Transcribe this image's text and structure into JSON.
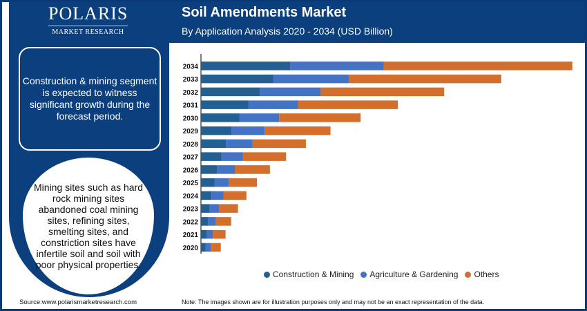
{
  "brand": {
    "name": "POLARIS",
    "sub": "MARKET RESEARCH"
  },
  "header": {
    "title": "Soil Amendments Market",
    "subtitle": "By Application Analysis 2020 - 2034 (USD Billion)"
  },
  "left_panel": {
    "highlight": "Construction & mining segment is expected to witness significant growth during the forecast period.",
    "insight": "Mining sites such as hard rock mining sites abandoned coal mining sites, refining sites, smelting sites, and constriction sites have infertile soil and soil with poor physical properties."
  },
  "footer": {
    "source": "Source:www.polarismarketresearch.com",
    "note": "Note: The images shown are for illustration purposes only and may not be an exact representation of the data."
  },
  "colors": {
    "brand": "#0b3f7e",
    "construction": "#245f91",
    "agriculture": "#4472c4",
    "others": "#d46e2c"
  },
  "chart_data": {
    "type": "bar",
    "orientation": "horizontal",
    "stacked": true,
    "title": "Soil Amendments Market",
    "subtitle": "By Application Analysis 2020 - 2034 (USD Billion)",
    "note": "no value axis printed; values are relative estimates",
    "categories": [
      "2034",
      "2033",
      "2032",
      "2031",
      "2030",
      "2029",
      "2028",
      "2027",
      "2026",
      "2025",
      "2024",
      "2023",
      "2022",
      "2021",
      "2020"
    ],
    "series": [
      {
        "name": "Construction & Mining",
        "color": "#245f91",
        "values": [
          3.38,
          2.73,
          2.22,
          1.79,
          1.45,
          1.16,
          0.95,
          0.78,
          0.61,
          0.51,
          0.4,
          0.33,
          0.27,
          0.22,
          0.17
        ]
      },
      {
        "name": "Agriculture & Gardening",
        "color": "#4472c4",
        "values": [
          3.54,
          2.86,
          2.31,
          1.88,
          1.51,
          1.25,
          1.0,
          0.8,
          0.67,
          0.54,
          0.45,
          0.36,
          0.29,
          0.23,
          0.2
        ]
      },
      {
        "name": "Others",
        "color": "#d46e2c",
        "values": [
          7.13,
          5.77,
          4.67,
          3.78,
          3.08,
          2.49,
          2.02,
          1.64,
          1.33,
          1.07,
          0.87,
          0.71,
          0.58,
          0.48,
          0.38
        ]
      }
    ],
    "xlim": [
      0,
      14.5
    ],
    "grid": false,
    "legend_position": "bottom"
  }
}
